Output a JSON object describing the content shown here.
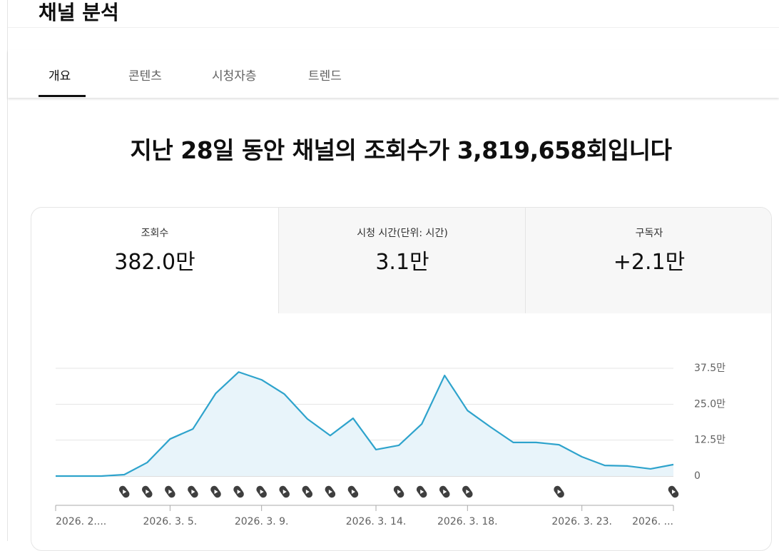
{
  "header": {
    "title": "채널 분석"
  },
  "tabs": [
    "개요",
    "콘텐츠",
    "시청자층",
    "트렌드"
  ],
  "headline": "지난 28일 동안 채널의 조회수가 3,819,658회입니다",
  "metrics": [
    {
      "label": "조회수",
      "value": "382.0만"
    },
    {
      "label": "시청 시간(단위: 시간)",
      "value": "3.1만"
    },
    {
      "label": "구독자",
      "value": "+2.1만"
    }
  ],
  "chart_data": {
    "type": "line",
    "categories": [
      "2026. 2....",
      null,
      null,
      null,
      null,
      "2026. 3. 5.",
      null,
      null,
      null,
      "2026. 3. 9.",
      null,
      null,
      null,
      null,
      "2026. 3. 14.",
      null,
      null,
      null,
      "2026. 3. 18.",
      null,
      null,
      null,
      null,
      "2026. 3. 23.",
      null,
      null,
      null,
      "2026. ..."
    ],
    "values": [
      0,
      0,
      0,
      0.5,
      4.7,
      12.9,
      16.4,
      28.8,
      36.2,
      33.5,
      28.5,
      19.9,
      14.1,
      20.1,
      9.2,
      10.7,
      18.1,
      35,
      22.8,
      17.1,
      11.7,
      11.7,
      10.9,
      6.7,
      3.7,
      3.5,
      2.5,
      4
    ],
    "color": "#2ea3cc",
    "area_color": "#e8f4fa",
    "ylim": [
      0,
      37.5
    ],
    "yticks": [
      0,
      {
        "value": 12.5,
        "label": "12.5만"
      },
      {
        "value": 25,
        "label": "25.0만"
      },
      {
        "value": 37.5,
        "label": "37.5만"
      }
    ],
    "grid": true
  }
}
